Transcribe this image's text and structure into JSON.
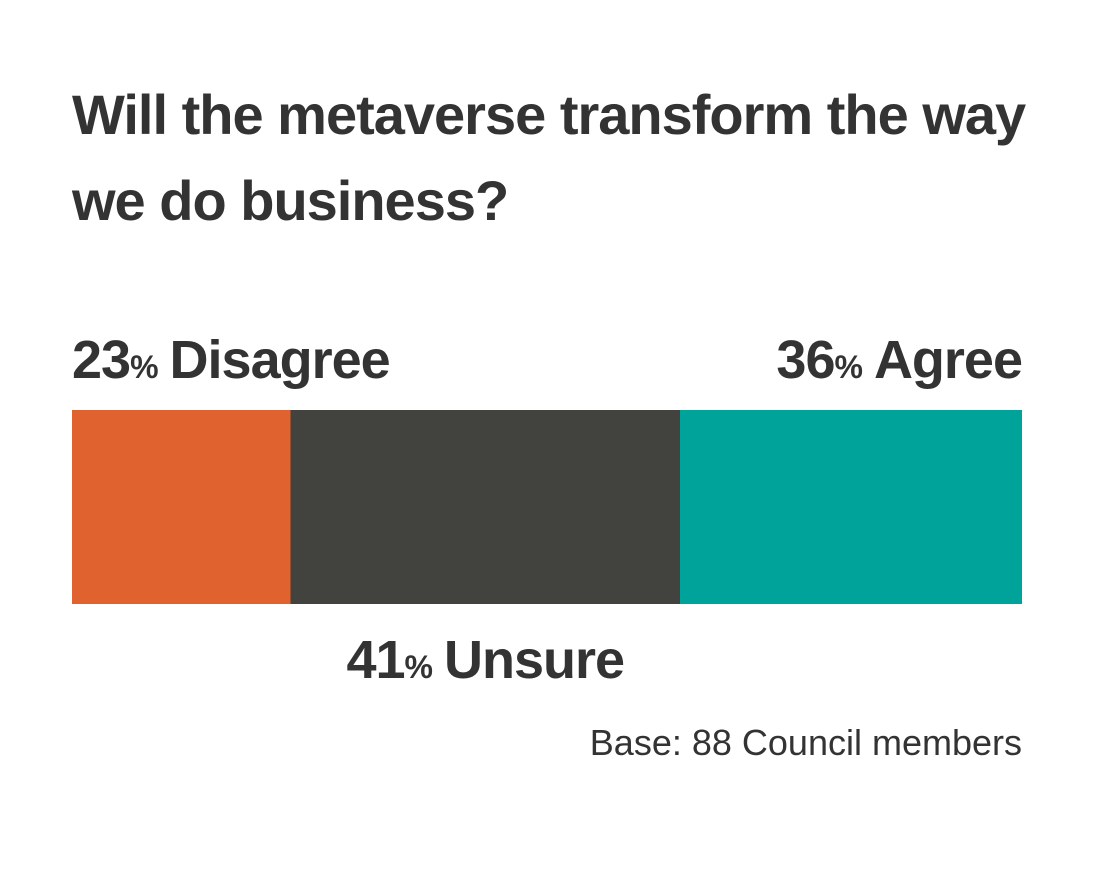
{
  "chart_data": {
    "type": "stacked-bar",
    "orientation": "horizontal",
    "title": "Will the metaverse transform the way we do business?",
    "unit": "%",
    "xlim": [
      0,
      100
    ],
    "series": [
      {
        "name": "Disagree",
        "color": "#e0622e",
        "values": [
          23
        ]
      },
      {
        "name": "Unsure",
        "color": "#42423e",
        "values": [
          41
        ]
      },
      {
        "name": "Agree",
        "color": "#00a39a",
        "values": [
          36
        ]
      }
    ],
    "footnote": "Base: 88 Council members"
  }
}
